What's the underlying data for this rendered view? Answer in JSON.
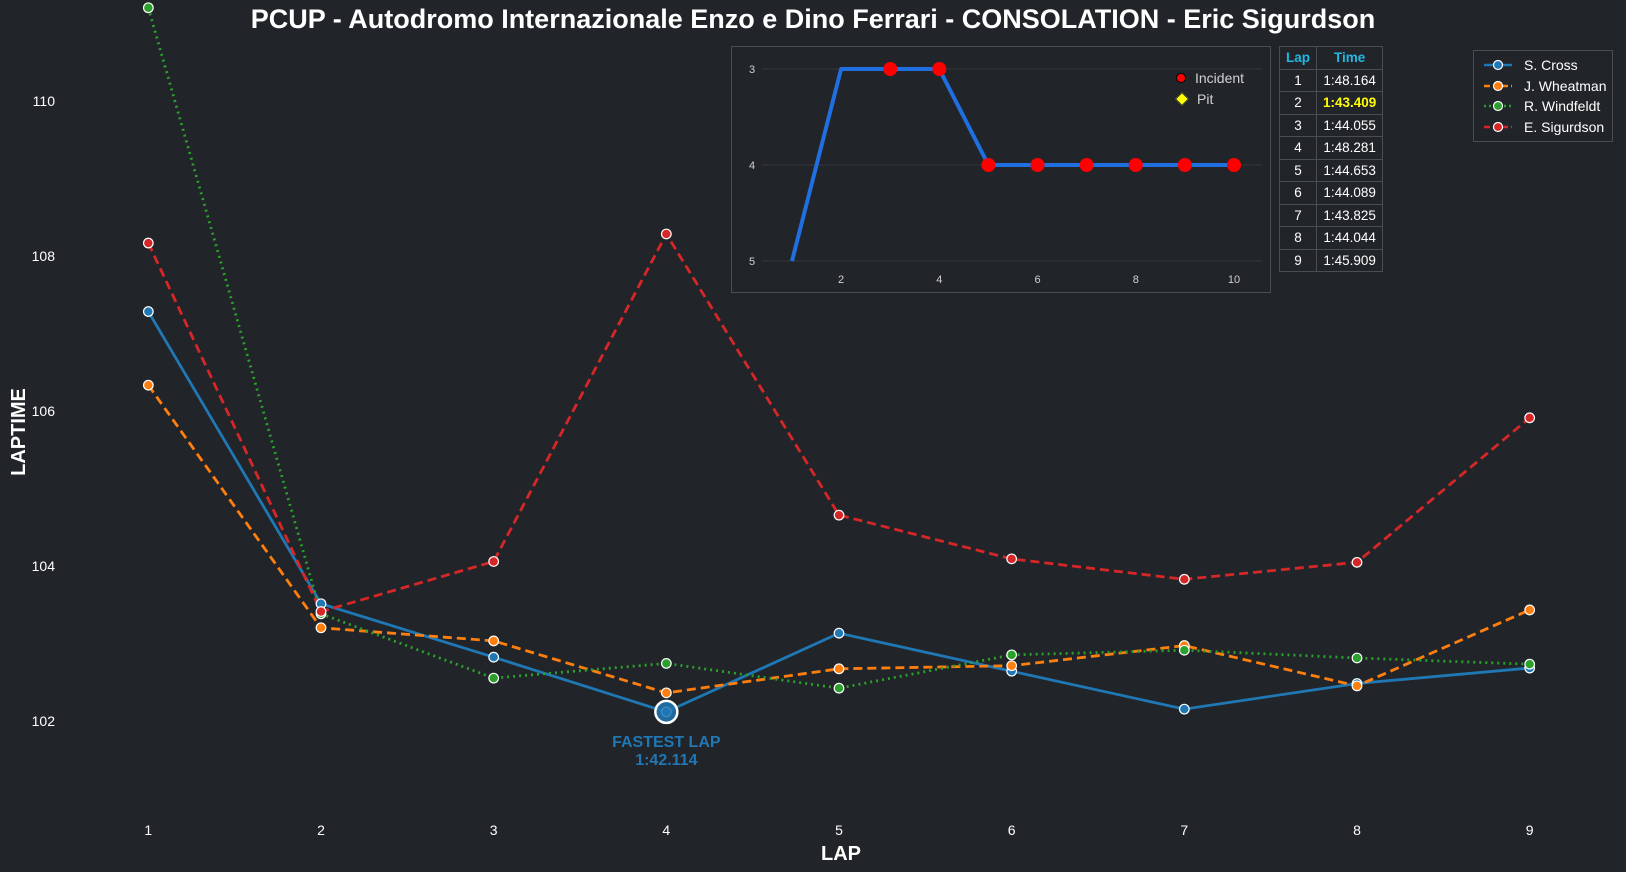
{
  "title": "PCUP - Autodromo Internazionale Enzo e Dino Ferrari - CONSOLATION - Eric Sigurdson",
  "chart_data": [
    {
      "type": "line",
      "title": "PCUP - Autodromo Internazionale Enzo e Dino Ferrari - CONSOLATION - Eric Sigurdson",
      "xlabel": "LAP",
      "ylabel": "LAPTIME",
      "x": [
        1,
        2,
        3,
        4,
        5,
        6,
        7,
        8,
        9
      ],
      "xlim": [
        0.5,
        9.5
      ],
      "ylim": [
        100.9,
        111.3
      ],
      "yticks": [
        102,
        104,
        106,
        108,
        110
      ],
      "grid": false,
      "legend_position": "top-right",
      "series": [
        {
          "name": "S. Cross",
          "color": "#1f77b4",
          "dash": "solid",
          "values": [
            107.28,
            103.51,
            102.82,
            102.114,
            103.13,
            102.64,
            102.15,
            102.48,
            102.68
          ]
        },
        {
          "name": "J. Wheatman",
          "color": "#ff7f0e",
          "dash": "dashed",
          "values": [
            106.33,
            103.2,
            103.03,
            102.36,
            102.67,
            102.71,
            102.97,
            102.45,
            103.43
          ]
        },
        {
          "name": "R. Windfeldt",
          "color": "#2ca02c",
          "dash": "dotted",
          "values": [
            111.2,
            103.38,
            102.55,
            102.74,
            102.42,
            102.85,
            102.91,
            102.81,
            102.73
          ]
        },
        {
          "name": "E. Sigurdson",
          "color": "#d62728",
          "dash": "dashed",
          "values": [
            108.164,
            103.409,
            104.055,
            108.281,
            104.653,
            104.089,
            103.825,
            104.044,
            105.909
          ]
        }
      ],
      "annotation": {
        "label": "FASTEST LAP",
        "value": "1:42.114",
        "x": 4,
        "y": 102.114,
        "series": "S. Cross",
        "color": "#1f77b4"
      }
    },
    {
      "type": "line",
      "title": "",
      "x": [
        1,
        2,
        3,
        4,
        5,
        6,
        7,
        8,
        9,
        10
      ],
      "values": [
        5,
        3,
        3,
        3,
        4,
        4,
        4,
        4,
        4,
        4
      ],
      "y_inverted": true,
      "ylim": [
        5,
        3
      ],
      "yticks": [
        3,
        4,
        5
      ],
      "xticks": [
        2,
        4,
        6,
        8,
        10
      ],
      "color": "#1f6fe0",
      "incidents": [
        3,
        4,
        5,
        6,
        7,
        8,
        9,
        10
      ],
      "pits": [],
      "legend": [
        {
          "label": "Incident",
          "marker": "circle",
          "color": "#ff0000"
        },
        {
          "label": "Pit",
          "marker": "diamond",
          "color": "#ffff00"
        }
      ]
    },
    {
      "type": "table",
      "columns": [
        "Lap",
        "Time"
      ],
      "rows": [
        [
          "1",
          "1:48.164"
        ],
        [
          "2",
          "1:43.409"
        ],
        [
          "3",
          "1:44.055"
        ],
        [
          "4",
          "1:48.281"
        ],
        [
          "5",
          "1:44.653"
        ],
        [
          "6",
          "1:44.089"
        ],
        [
          "7",
          "1:43.825"
        ],
        [
          "8",
          "1:44.044"
        ],
        [
          "9",
          "1:45.909"
        ]
      ],
      "best_lap": 2,
      "header_color": "#21b8e6",
      "best_color": "#ffff00"
    }
  ]
}
